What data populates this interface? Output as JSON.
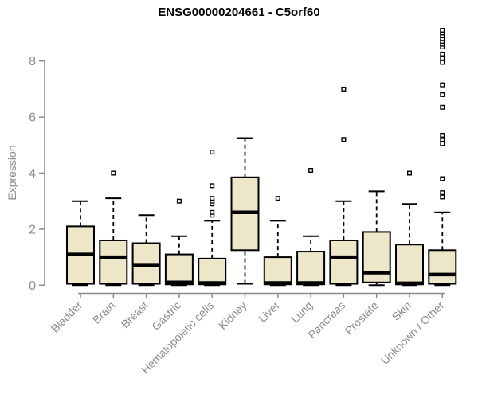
{
  "chart_data": {
    "type": "boxplot",
    "title": "ENSG00000204661 - C5orf60",
    "ylabel": "Expression",
    "xlabel": "",
    "yticks": [
      0,
      2,
      4,
      6,
      8
    ],
    "ylim": [
      0,
      9.2
    ],
    "grid": false,
    "legend": false,
    "categories": [
      "Bladder",
      "Brain",
      "Breast",
      "Gastric",
      "Hematopoietic cells",
      "Kidney",
      "Liver",
      "Lung",
      "Pancreas",
      "Prostate",
      "Skin",
      "Unknown / Other"
    ],
    "boxes": [
      {
        "category": "Bladder",
        "low": 0,
        "q1": 0.05,
        "median": 1.1,
        "q3": 2.1,
        "high": 3.0,
        "outliers": []
      },
      {
        "category": "Brain",
        "low": 0,
        "q1": 0.05,
        "median": 1.0,
        "q3": 1.6,
        "high": 3.1,
        "outliers": [
          4.0
        ]
      },
      {
        "category": "Breast",
        "low": 0,
        "q1": 0.05,
        "median": 0.7,
        "q3": 1.5,
        "high": 2.5,
        "outliers": []
      },
      {
        "category": "Gastric",
        "low": 0,
        "q1": 0.03,
        "median": 0.1,
        "q3": 1.1,
        "high": 1.75,
        "outliers": [
          3.0
        ]
      },
      {
        "category": "Hematopoietic cells",
        "low": 0,
        "q1": 0.03,
        "median": 0.08,
        "q3": 0.95,
        "high": 2.3,
        "outliers": [
          2.5,
          2.6,
          2.9,
          3.0,
          3.1,
          3.55,
          4.75
        ]
      },
      {
        "category": "Kidney",
        "low": 0.05,
        "q1": 1.25,
        "median": 2.6,
        "q3": 3.85,
        "high": 5.25,
        "outliers": []
      },
      {
        "category": "Liver",
        "low": 0,
        "q1": 0.03,
        "median": 0.08,
        "q3": 1.0,
        "high": 2.3,
        "outliers": [
          3.1
        ]
      },
      {
        "category": "Lung",
        "low": 0,
        "q1": 0.03,
        "median": 0.08,
        "q3": 1.2,
        "high": 1.75,
        "outliers": [
          4.1
        ]
      },
      {
        "category": "Pancreas",
        "low": 0,
        "q1": 0.05,
        "median": 1.0,
        "q3": 1.6,
        "high": 3.0,
        "outliers": [
          5.2,
          7.0
        ]
      },
      {
        "category": "Prostate",
        "low": 0,
        "q1": 0.1,
        "median": 0.45,
        "q3": 1.9,
        "high": 3.35,
        "outliers": []
      },
      {
        "category": "Skin",
        "low": 0,
        "q1": 0.03,
        "median": 0.07,
        "q3": 1.45,
        "high": 2.9,
        "outliers": [
          4.0
        ]
      },
      {
        "category": "Unknown / Other",
        "low": 0,
        "q1": 0.05,
        "median": 0.38,
        "q3": 1.25,
        "high": 2.6,
        "outliers": [
          3.15,
          3.3,
          3.8,
          5.05,
          5.2,
          5.35,
          6.35,
          6.8,
          7.15,
          7.95,
          8.1,
          8.25,
          8.5,
          8.6,
          8.7,
          8.8,
          8.9,
          9.0,
          9.1
        ]
      }
    ],
    "colors": {
      "box_fill": "#EDE6C9",
      "box_border": "#000000",
      "median": "#000000",
      "outlier_fill": "#FFFFFF",
      "axis": "#8C8C8C",
      "title": "#000000",
      "background": "#FFFFFF"
    }
  }
}
